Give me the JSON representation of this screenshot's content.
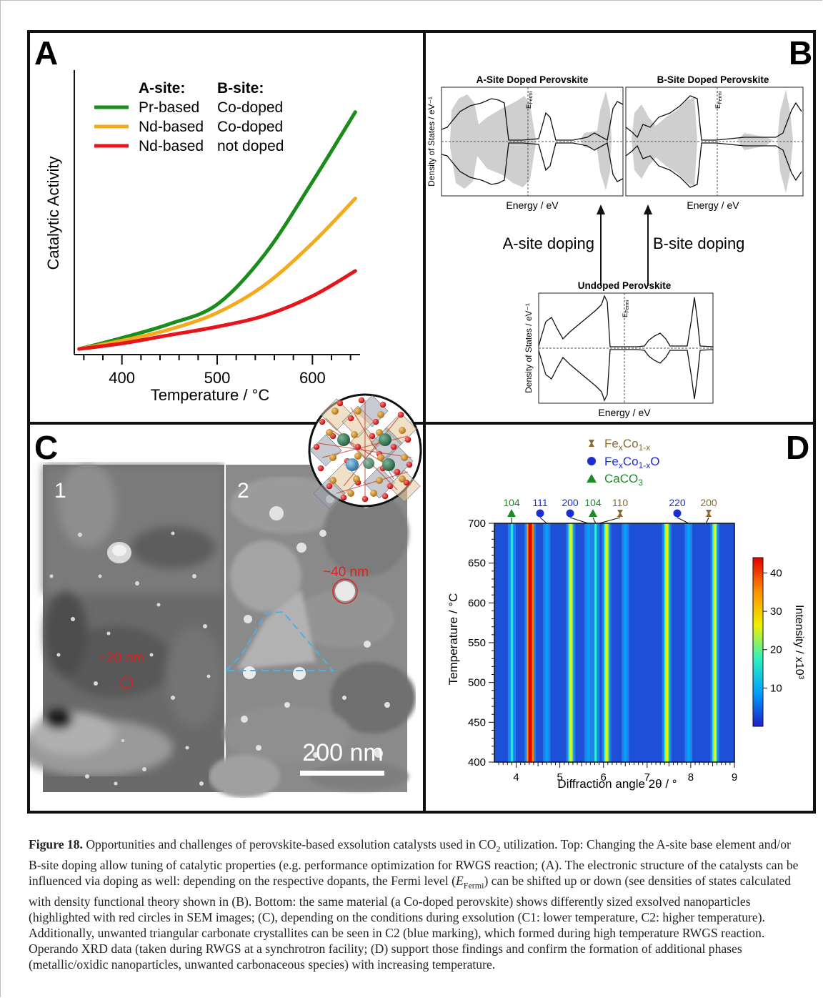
{
  "panel_a": {
    "letter": "A",
    "legend": {
      "col_a_header": "A-site:",
      "col_b_header": "B-site:",
      "rows": [
        {
          "a_site": "Pr-based",
          "b_site": "Co-doped",
          "color": "#1a8c1a"
        },
        {
          "a_site": "Nd-based",
          "b_site": "Co-doped",
          "color": "#f5aa1c"
        },
        {
          "a_site": "Nd-based",
          "b_site": "not doped",
          "color": "#e8141b"
        }
      ]
    }
  },
  "panel_b": {
    "letter": "B",
    "dos_a_title": "A-Site Doped Perovskite",
    "dos_b_title": "B-Site Doped Perovskite",
    "dos_undoped_title": "Undoped Perovskite",
    "ylabel": "Density of States / eV⁻¹",
    "xlabel": "Energy / eV",
    "fermi_label": "E",
    "fermi_sub": "Fermi",
    "arrow_a_label": "A-site doping",
    "arrow_b_label": "B-site doping"
  },
  "panel_c": {
    "letter": "C",
    "sub1_label": "1",
    "sub2_label": "2",
    "particle1_label": "~20 nm",
    "particle2_label": "~40 nm",
    "scalebar_label": "200 nm",
    "circle_color": "#e02020",
    "triangle_color": "#4fb0e0"
  },
  "panel_d": {
    "letter": "D",
    "legend": [
      {
        "label_main": "Fe",
        "sub1": "x",
        "mid": "Co",
        "sub2": "1-x",
        "tail": "",
        "symbol": "bowtie",
        "color": "#8b6a2b"
      },
      {
        "label_main": "Fe",
        "sub1": "x",
        "mid": "Co",
        "sub2": "1-x",
        "tail": "O",
        "symbol": "circle",
        "color": "#1a2ed0"
      },
      {
        "label_main": "CaCO",
        "sub1": "3",
        "mid": "",
        "sub2": "",
        "tail": "",
        "symbol": "triangle",
        "color": "#1f8a2a"
      }
    ],
    "peak_labels": [
      {
        "text": "104",
        "color": "#1f8a2a"
      },
      {
        "text": "111",
        "color": "#1a2ed0"
      },
      {
        "text": "200",
        "color": "#1a2ed0"
      },
      {
        "text": "104",
        "color": "#1f8a2a"
      },
      {
        "text": "110",
        "color": "#8b6a2b"
      },
      {
        "text": "220",
        "color": "#1a2ed0"
      },
      {
        "text": "200",
        "color": "#8b6a2b"
      }
    ],
    "colorbar_label": "Intensity / x10³"
  },
  "chart_data": [
    {
      "type": "line",
      "xlabel": "Temperature / °C",
      "ylabel": "Catalytic Activity",
      "xlim": [
        350,
        650
      ],
      "x_ticks": [
        400,
        500,
        600
      ],
      "y_ticks_shown": false,
      "grid": false,
      "legend_position": "top-left",
      "x": [
        355,
        400,
        450,
        500,
        550,
        600,
        645
      ],
      "series": [
        {
          "name": "Pr-based / Co-doped",
          "values": [
            0.02,
            0.06,
            0.11,
            0.18,
            0.36,
            0.62,
            0.87
          ]
        },
        {
          "name": "Nd-based / Co-doped",
          "values": [
            0.02,
            0.05,
            0.09,
            0.15,
            0.25,
            0.4,
            0.56
          ]
        },
        {
          "name": "Nd-based / not doped",
          "values": [
            0.02,
            0.04,
            0.07,
            0.1,
            0.14,
            0.21,
            0.3
          ]
        }
      ]
    },
    {
      "type": "heatmap",
      "xlabel": "Diffraction angle 2θ / °",
      "ylabel": "Temperature / °C",
      "xlim": [
        3.5,
        9.0
      ],
      "ylim": [
        400,
        700
      ],
      "x_ticks": [
        4,
        5,
        6,
        7,
        8,
        9
      ],
      "y_ticks": [
        400,
        450,
        500,
        550,
        600,
        650,
        700
      ],
      "colorbar": {
        "min": 0,
        "max": 44,
        "ticks": [
          10,
          20,
          30,
          40
        ],
        "label": "Intensity / x10³",
        "colors": [
          "#1f20c8",
          "#00a0ff",
          "#2ef0c0",
          "#f0f000",
          "#ff9000",
          "#e00000"
        ]
      },
      "reflections": [
        {
          "two_theta": 3.9,
          "intensity": 14
        },
        {
          "two_theta": 4.32,
          "intensity": 44
        },
        {
          "two_theta": 4.7,
          "intensity": 8
        },
        {
          "two_theta": 5.25,
          "intensity": 25
        },
        {
          "two_theta": 5.65,
          "intensity": 9
        },
        {
          "two_theta": 5.82,
          "intensity": 16
        },
        {
          "two_theta": 6.07,
          "intensity": 26
        },
        {
          "two_theta": 6.5,
          "intensity": 7
        },
        {
          "two_theta": 7.45,
          "intensity": 28
        },
        {
          "two_theta": 7.95,
          "intensity": 10
        },
        {
          "two_theta": 8.55,
          "intensity": 24
        }
      ]
    }
  ],
  "caption": {
    "figure_label": "Figure 18.",
    "p1": " Opportunities and challenges of perovskite-based exsolution catalysts used in CO",
    "p1_sub": "2",
    "p2": " utilization. Top: Changing the A-site base element and/or B-site doping allow tuning of catalytic properties (e.g. performance optimization for RWGS reaction; (A). The electronic structure of the catalysts can be influenced via doping as well: depending on the respective dopants, the Fermi level (",
    "p2_italic": "E",
    "p2_sub": "Fermi",
    "p3": ") can be shifted up or down (see densities of states calculated with density functional theory shown in (B). Bottom: the same material (a Co-doped perovskite) shows differently sized exsolved nanoparticles (highlighted with red circles in SEM images; (C), depending on the conditions during exsolution (C1: lower temperature, C2: higher temperature). Additionally, unwanted triangular carbonate crystallites can be seen in C2 (blue marking), which formed during high temperature RWGS reaction. Operando XRD data (taken during RWGS at a synchrotron facility; (D) support those findings and confirm the formation of additional phases (metallic/oxidic nanoparticles, unwanted carbonaceous species) with increasing temperature."
  }
}
